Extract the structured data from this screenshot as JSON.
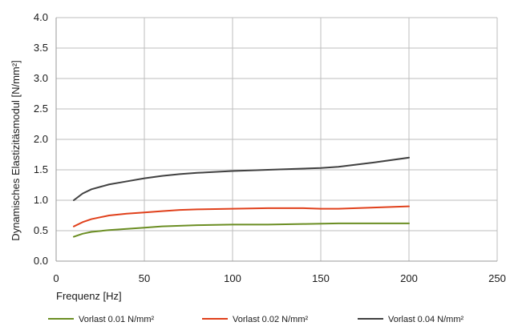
{
  "chart_data": {
    "type": "line",
    "title": "",
    "xlabel": "Frequenz [Hz]",
    "ylabel": "Dynamisches Elastizitäsmodul [N/mm²]",
    "xlim": [
      0,
      250
    ],
    "ylim": [
      0.0,
      4.0
    ],
    "x_ticks": [
      "0",
      "50",
      "100",
      "150",
      "200",
      "250"
    ],
    "y_ticks": [
      "0.0",
      "0.5",
      "1.0",
      "1.5",
      "2.0",
      "2.5",
      "3.0",
      "3.5",
      "4.0"
    ],
    "grid": true,
    "legend_position": "bottom",
    "series": [
      {
        "name": "Vorlast 0.01 N/mm²",
        "color": "#6b8e23",
        "x": [
          10,
          15,
          20,
          30,
          40,
          50,
          60,
          70,
          80,
          100,
          120,
          140,
          160,
          180,
          200
        ],
        "y": [
          0.4,
          0.45,
          0.48,
          0.51,
          0.53,
          0.55,
          0.57,
          0.58,
          0.59,
          0.6,
          0.6,
          0.61,
          0.62,
          0.62,
          0.62
        ]
      },
      {
        "name": "Vorlast 0.02 N/mm²",
        "color": "#e0401b",
        "x": [
          10,
          15,
          20,
          30,
          40,
          50,
          60,
          70,
          80,
          100,
          120,
          140,
          150,
          160,
          180,
          200
        ],
        "y": [
          0.57,
          0.64,
          0.69,
          0.75,
          0.78,
          0.8,
          0.82,
          0.84,
          0.85,
          0.86,
          0.87,
          0.87,
          0.86,
          0.86,
          0.88,
          0.9
        ]
      },
      {
        "name": "Vorlast 0.04 N/mm²",
        "color": "#404040",
        "x": [
          10,
          15,
          20,
          30,
          40,
          50,
          60,
          70,
          80,
          100,
          120,
          140,
          150,
          160,
          180,
          200
        ],
        "y": [
          1.0,
          1.11,
          1.18,
          1.26,
          1.31,
          1.36,
          1.4,
          1.43,
          1.45,
          1.48,
          1.5,
          1.52,
          1.53,
          1.55,
          1.62,
          1.7
        ]
      }
    ]
  }
}
